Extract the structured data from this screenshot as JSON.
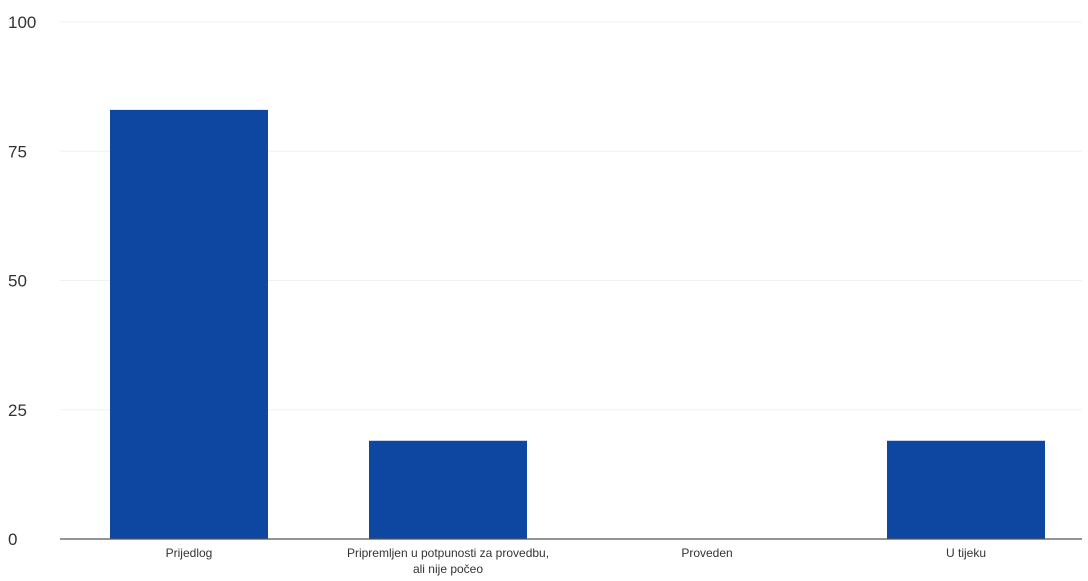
{
  "chart_data": {
    "type": "bar",
    "title": "",
    "xlabel": "",
    "ylabel": "",
    "categories": [
      [
        "Prijedlog"
      ],
      [
        "Pripremljen u potpunosti za provedbu,",
        "ali nije počeo"
      ],
      [
        "Proveden"
      ],
      [
        "U tijeku"
      ]
    ],
    "values": [
      83,
      19,
      0,
      19
    ],
    "ylim": [
      0,
      100
    ],
    "yticks": [
      0,
      25,
      50,
      75,
      100
    ],
    "grid": true,
    "legend": "none",
    "bar_color": "#0d47a1"
  }
}
